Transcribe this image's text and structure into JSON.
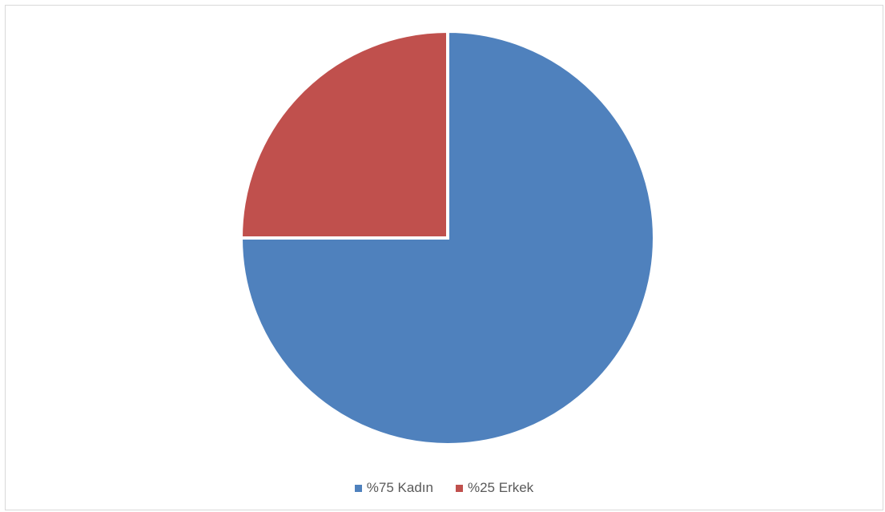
{
  "chart_data": {
    "type": "pie",
    "title": "",
    "categories": [
      "%75 Kadın",
      "%25 Erkek"
    ],
    "values": [
      75,
      25
    ],
    "colors": [
      "#4f81bd",
      "#c0504d"
    ],
    "start_angle_deg": 0,
    "direction": "clockwise",
    "legend": "bottom-center"
  }
}
